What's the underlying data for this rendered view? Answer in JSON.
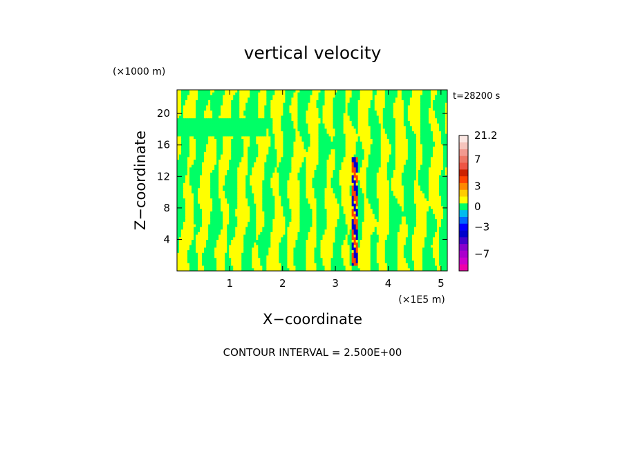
{
  "chart_data": {
    "type": "heatmap",
    "title": "vertical velocity",
    "xlabel": "X−coordinate",
    "ylabel": "Z−coordinate",
    "x_unit": "(×1E5 m)",
    "y_unit": "(×1000 m)",
    "time_label": "t=28200 s",
    "footer": "CONTOUR INTERVAL = 2.500E+00",
    "xlim": [
      0,
      5.12
    ],
    "ylim": [
      0,
      23
    ],
    "x_ticks": [
      {
        "value": 1,
        "label": "1"
      },
      {
        "value": 2,
        "label": "2"
      },
      {
        "value": 3,
        "label": "3"
      },
      {
        "value": 4,
        "label": "4"
      },
      {
        "value": 5,
        "label": "5"
      }
    ],
    "y_ticks": [
      {
        "value": 4,
        "label": "4"
      },
      {
        "value": 8,
        "label": "8"
      },
      {
        "value": 12,
        "label": "12"
      },
      {
        "value": 16,
        "label": "16"
      },
      {
        "value": 20,
        "label": "20"
      }
    ],
    "colorbar": {
      "levels": [
        {
          "value": -9.5,
          "color": "#ee00aa"
        },
        {
          "value": -8,
          "color": "#cc00cc"
        },
        {
          "value": -7,
          "color": "#aa00cc"
        },
        {
          "value": -6,
          "color": "#8800cc"
        },
        {
          "value": -5,
          "color": "#4400cc"
        },
        {
          "value": -4,
          "color": "#0000cc"
        },
        {
          "value": -3,
          "color": "#0000ff"
        },
        {
          "value": -2,
          "color": "#0066ff"
        },
        {
          "value": -1,
          "color": "#00bbee"
        },
        {
          "value": 0,
          "color": "#00ff66"
        },
        {
          "value": 1,
          "color": "#ffff00"
        },
        {
          "value": 2,
          "color": "#ffcc00"
        },
        {
          "value": 3,
          "color": "#ff8800"
        },
        {
          "value": 4,
          "color": "#ff4400"
        },
        {
          "value": 5,
          "color": "#cc2200"
        },
        {
          "value": 6,
          "color": "#ee5544"
        },
        {
          "value": 7,
          "color": "#ee7766"
        },
        {
          "value": 8,
          "color": "#f29a90"
        },
        {
          "value": 12,
          "color": "#f6c4bc"
        },
        {
          "value": 16,
          "color": "#fbe6e2"
        }
      ],
      "tick_labels": [
        {
          "value": 21.2,
          "label": "21.2"
        },
        {
          "value": 7,
          "label": "7"
        },
        {
          "value": 3,
          "label": "3"
        },
        {
          "value": 0,
          "label": "0"
        },
        {
          "value": -3,
          "label": "−3"
        },
        {
          "value": -7,
          "label": "−7"
        }
      ]
    },
    "field_colors": {
      "positive": "#ffff00",
      "negative": "#00ff66",
      "updraft_core": "#ff4400",
      "downdraft_core": "#0000cc"
    },
    "anomaly_x": 3.38
  }
}
